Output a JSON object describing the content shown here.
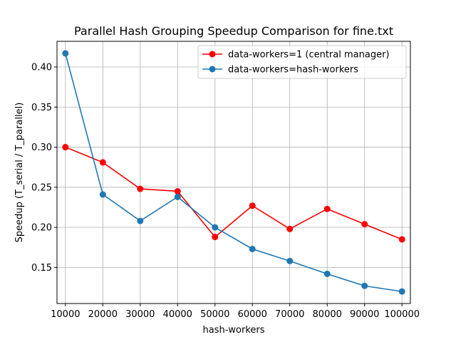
{
  "chart_data": {
    "type": "line",
    "title": "Parallel Hash Grouping Speedup Comparison for fine.txt",
    "xlabel": "hash-workers",
    "ylabel": "Speedup (T_serial / T_parallel)",
    "x": [
      10000,
      20000,
      30000,
      40000,
      50000,
      60000,
      70000,
      80000,
      90000,
      100000
    ],
    "xticks": [
      "10000",
      "20000",
      "30000",
      "40000",
      "50000",
      "60000",
      "70000",
      "80000",
      "90000",
      "100000"
    ],
    "yticks": [
      "0.15",
      "0.20",
      "0.25",
      "0.30",
      "0.35",
      "0.40"
    ],
    "ytick_values": [
      0.15,
      0.2,
      0.25,
      0.3,
      0.35,
      0.4
    ],
    "xlim": [
      7750,
      102250
    ],
    "ylim": [
      0.105,
      0.432
    ],
    "grid": true,
    "legend_position": "top-right",
    "series": [
      {
        "name": "data-workers=1 (central manager)",
        "color": "#ff0000",
        "values": [
          0.3,
          0.281,
          0.248,
          0.245,
          0.188,
          0.227,
          0.198,
          0.223,
          0.204,
          0.185
        ]
      },
      {
        "name": "data-workers=hash-workers",
        "color": "#1f77b4",
        "values": [
          0.417,
          0.241,
          0.208,
          0.238,
          0.2,
          0.173,
          0.158,
          0.142,
          0.127,
          0.12
        ]
      }
    ]
  }
}
